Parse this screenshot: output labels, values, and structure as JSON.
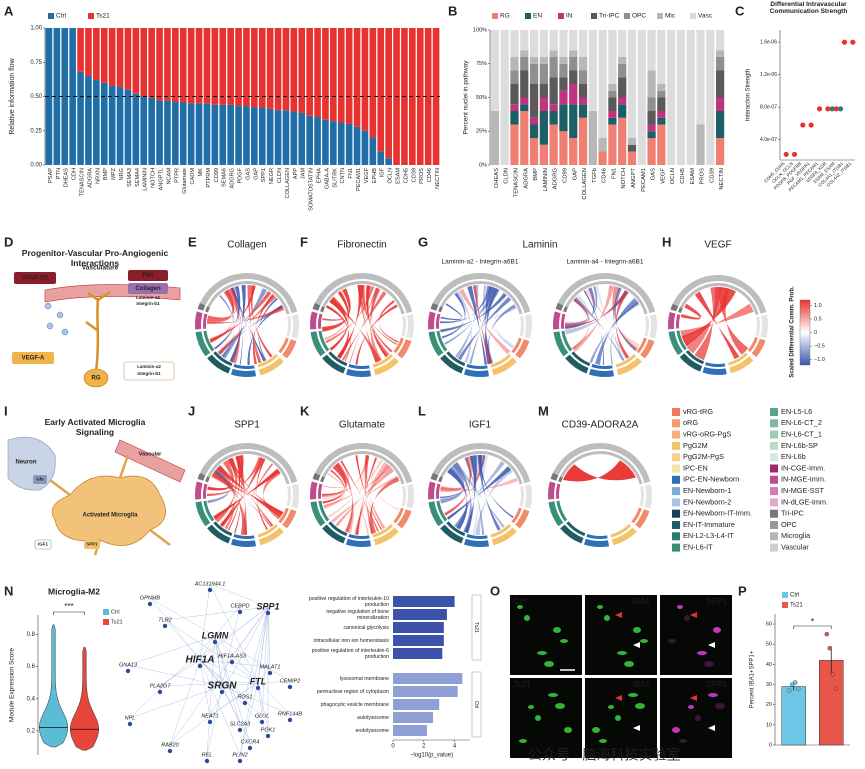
{
  "panels": [
    "A",
    "B",
    "C",
    "D",
    "E",
    "F",
    "G",
    "H",
    "I",
    "J",
    "K",
    "L",
    "M",
    "N",
    "O",
    "P"
  ],
  "chart_data": [
    {
      "type": "bar",
      "stacked": true,
      "y_label": "Relative information flow",
      "categories": [
        "PSAP",
        "PTN",
        "DHEAS",
        "CDH",
        "TENASCIN",
        "ADGRA",
        "NRXN",
        "BMP",
        "MPZ",
        "NRG",
        "SEMA3",
        "SEMA4",
        "LAMININ",
        "NOTCH",
        "ANGPTL",
        "NCAM",
        "PTPR",
        "Glutamate",
        "CADM",
        "MK",
        "PTPRM",
        "CD99",
        "SEMA6",
        "ADGRG",
        "PDGF",
        "GAS",
        "GAP",
        "SPP1",
        "NEGR",
        "CLDN",
        "COLLAGEN",
        "APP",
        "JAM",
        "SOMATOSTATIN",
        "EPHA",
        "GABA-A",
        "SLITRK",
        "CNTN",
        "FN1",
        "PECAM1",
        "VEGF",
        "EPHB",
        "IGF",
        "OCLN",
        "ESAM",
        "CDH5",
        "CD39",
        "PROS",
        "CD46",
        "NECTIN"
      ],
      "category_colors": [
        "#2a8fb5",
        "#2a8fb5",
        "#2a8fb5",
        "#2a8fb5",
        "#222222",
        "#2a8fb5",
        "#2a8fb5",
        "#2a8fb5",
        "#222222",
        "#222222",
        "#222222",
        "#222222",
        "#222222",
        "#222222",
        "#e8322f",
        "#e8322f",
        "#e8322f",
        "#e8322f",
        "#e8322f",
        "#e8322f",
        "#222222",
        "#222222",
        "#e8322f",
        "#222222",
        "#222222",
        "#e8322f",
        "#222222",
        "#e8322f",
        "#e8322f",
        "#e8322f",
        "#e8322f",
        "#e8322f",
        "#e8322f",
        "#222222",
        "#222222",
        "#e8322f",
        "#e8322f",
        "#e8322f",
        "#e8322f",
        "#e8322f",
        "#222222",
        "#e8322f",
        "#e8322f",
        "#e8322f",
        "#e8322f",
        "#e8322f",
        "#e8322f",
        "#e8322f",
        "#e8322f",
        "#e8322f"
      ],
      "series": [
        {
          "name": "Ctrl",
          "color": "#1f6ea8",
          "values": [
            1,
            1,
            1,
            1,
            0.68,
            0.65,
            0.62,
            0.6,
            0.58,
            0.57,
            0.55,
            0.52,
            0.5,
            0.49,
            0.47,
            0.47,
            0.46,
            0.46,
            0.45,
            0.45,
            0.45,
            0.44,
            0.44,
            0.44,
            0.43,
            0.43,
            0.42,
            0.42,
            0.41,
            0.4,
            0.4,
            0.39,
            0.38,
            0.36,
            0.35,
            0.33,
            0.32,
            0.31,
            0.3,
            0.28,
            0.25,
            0.2,
            0.1,
            0.05,
            0,
            0,
            0,
            0,
            0,
            0
          ]
        },
        {
          "name": "Ts21",
          "color": "#e8322f",
          "values": [
            0,
            0,
            0,
            0,
            0.32,
            0.35,
            0.38,
            0.4,
            0.42,
            0.43,
            0.45,
            0.48,
            0.5,
            0.51,
            0.53,
            0.53,
            0.54,
            0.54,
            0.55,
            0.55,
            0.55,
            0.56,
            0.56,
            0.56,
            0.57,
            0.57,
            0.58,
            0.58,
            0.59,
            0.6,
            0.6,
            0.61,
            0.62,
            0.64,
            0.65,
            0.67,
            0.68,
            0.69,
            0.7,
            0.72,
            0.75,
            0.8,
            0.9,
            0.95,
            1,
            1,
            1,
            1,
            1,
            1
          ]
        }
      ],
      "ylim": [
        0,
        1
      ],
      "yticks": [
        {
          "value": 0,
          "label": "0.00"
        },
        {
          "value": 0.25,
          "label": "0.25"
        },
        {
          "value": 0.5,
          "label": "0.50"
        },
        {
          "value": 0.75,
          "label": "0.75"
        },
        {
          "value": 1,
          "label": "1.00"
        }
      ],
      "hline": 0.5
    },
    {
      "type": "bar",
      "stacked": true,
      "y_label": "Percent nuclei in pathway",
      "categories": [
        "DHEAS",
        "CLDN",
        "TENASCIN",
        "ADGRA",
        "BMP",
        "LAMININ",
        "ADGRG",
        "CD99",
        "GAP",
        "COLLAGEN",
        "TGFb",
        "CD46",
        "FN1",
        "NOTCH",
        "ANGPT",
        "PECAM1",
        "GAS",
        "VEGF",
        "OCLN",
        "CDH5",
        "ESAM",
        "PROS",
        "CD39",
        "NECTIN"
      ],
      "category_colors": [
        "#2a8fb5",
        "#2a8fb5",
        "#222222",
        "#2a8fb5",
        "#222222",
        "#222222",
        "#222222",
        "#222222",
        "#222222",
        "#e8322f",
        "#222222",
        "#e8322f",
        "#e8322f",
        "#e8322f",
        "#e8322f",
        "#e8322f",
        "#e8322f",
        "#222222",
        "#e8322f",
        "#e8322f",
        "#e8322f",
        "#e8322f",
        "#e8322f",
        "#e8322f"
      ],
      "series": [
        {
          "name": "RG",
          "color": "#ee7f72",
          "values": [
            0,
            0,
            30,
            40,
            20,
            15,
            30,
            25,
            20,
            35,
            0,
            10,
            30,
            35,
            10,
            0,
            20,
            30,
            0,
            0,
            0,
            0,
            0,
            20
          ]
        },
        {
          "name": "EN",
          "color": "#1d5f66",
          "values": [
            0,
            0,
            10,
            5,
            10,
            25,
            10,
            20,
            25,
            10,
            0,
            0,
            5,
            10,
            0,
            0,
            5,
            5,
            0,
            0,
            0,
            0,
            0,
            20
          ]
        },
        {
          "name": "IN",
          "color": "#c2337f",
          "values": [
            0,
            0,
            5,
            5,
            5,
            10,
            5,
            10,
            15,
            5,
            0,
            0,
            5,
            5,
            0,
            0,
            5,
            5,
            0,
            0,
            0,
            0,
            0,
            10
          ]
        },
        {
          "name": "Tri-IPC",
          "color": "#5a5a5a",
          "values": [
            0,
            0,
            15,
            20,
            25,
            10,
            20,
            10,
            10,
            10,
            0,
            0,
            10,
            15,
            5,
            0,
            10,
            10,
            0,
            0,
            0,
            0,
            0,
            20
          ]
        },
        {
          "name": "OPC",
          "color": "#8f8f8f",
          "values": [
            0,
            0,
            10,
            10,
            15,
            15,
            15,
            10,
            10,
            10,
            0,
            0,
            5,
            10,
            0,
            0,
            10,
            5,
            0,
            0,
            0,
            0,
            0,
            10
          ]
        },
        {
          "name": "Mic",
          "color": "#b7b7b7",
          "values": [
            40,
            0,
            10,
            5,
            5,
            5,
            5,
            5,
            5,
            10,
            40,
            10,
            5,
            5,
            5,
            0,
            20,
            5,
            0,
            0,
            0,
            30,
            0,
            5
          ]
        },
        {
          "name": "Vasc",
          "color": "#dcdcdc",
          "values": [
            60,
            100,
            20,
            15,
            20,
            20,
            15,
            20,
            15,
            20,
            60,
            80,
            40,
            20,
            80,
            100,
            30,
            40,
            100,
            100,
            100,
            70,
            100,
            15
          ]
        }
      ],
      "ylim": [
        0,
        100
      ],
      "yticks": [
        {
          "value": 0,
          "label": "0%"
        },
        {
          "value": 25,
          "label": "25%"
        },
        {
          "value": 50,
          "label": "50%"
        },
        {
          "value": 75,
          "label": "75%"
        },
        {
          "value": 100,
          "label": "100%"
        }
      ]
    },
    {
      "type": "scatter",
      "title": "Differential Intravascular Communication Strength",
      "y_label": "Interaction Strength",
      "categories": [
        "CDH5_CDH5",
        "OCLN_OCLN",
        "PDGFB_PDGFRB",
        "PGF_VEGFR1",
        "PECAM1_PECAM1",
        "VEGFA_KDR",
        "ESAM_ESAM",
        "COL4A1_ITGB1",
        "COL4A2_ITGB1"
      ],
      "series": [
        {
          "name": "Ctrl",
          "color": "#1a7f86",
          "values": [
            null,
            null,
            null,
            null,
            null,
            null,
            7.8e-07,
            7.8e-07,
            null
          ]
        },
        {
          "name": "Ts21",
          "color": "#e8322f",
          "values": [
            2.2e-07,
            2.2e-07,
            5.8e-07,
            5.8e-07,
            7.8e-07,
            7.8e-07,
            7.8e-07,
            1.6e-06,
            1.6e-06
          ]
        }
      ],
      "ylim": [
        1.5e-07,
        1.75e-06
      ],
      "yticks": [
        {
          "value": 4e-07,
          "label": "4.0e-07"
        },
        {
          "value": 8e-07,
          "label": "8.0e-07"
        },
        {
          "value": 1.2e-06,
          "label": "1.2e-06"
        },
        {
          "value": 1.6e-06,
          "label": "1.6e-06"
        }
      ]
    },
    {
      "type": "violin",
      "title": "Microglia-M2",
      "y_label": "Module Expression Score",
      "annotation": "***",
      "series": [
        {
          "name": "Ctrl",
          "color": "#5bbcd6",
          "min": 0.1,
          "median": 0.22,
          "max": 0.86
        },
        {
          "name": "Ts21",
          "color": "#e8453c",
          "min": 0.08,
          "median": 0.21,
          "max": 0.72
        }
      ],
      "ylim": [
        0.05,
        0.92
      ],
      "yticks": [
        0.2,
        0.4,
        0.6,
        0.8
      ]
    },
    {
      "type": "hbar",
      "x_label": "−log10(p_value)",
      "categories": [
        "positive regulation of interleukin-10 production",
        "negative regulation of bone mineralization",
        "canonical glycolysis",
        "intracellular iron ion homeostasis",
        "positive regulation of interleukin-6 production",
        "lysosomal membrane",
        "perinuclear region of cytoplasm",
        "phagocytic vesicle membrane",
        "autolysosome",
        "endolysosome"
      ],
      "series": [
        {
          "name": "Ts21",
          "color": "#3b52a8",
          "values": [
            4.0,
            3.5,
            3.3,
            3.3,
            3.2,
            null,
            null,
            null,
            null,
            null
          ]
        },
        {
          "name": "Ctrl",
          "color": "#8e9fd6",
          "values": [
            null,
            null,
            null,
            null,
            null,
            4.5,
            4.2,
            3.0,
            2.6,
            2.2
          ]
        }
      ],
      "xlim": [
        0,
        5
      ],
      "xticks": [
        0,
        2,
        4
      ]
    },
    {
      "type": "bar",
      "y_label": "Percent IBA1+SPP1+",
      "annotation": "*",
      "series": [
        {
          "name": "Ctrl",
          "color": "#6ec6e6",
          "values": [
            29
          ],
          "errors": [
            2
          ],
          "points": [
            27,
            30,
            31,
            28
          ]
        },
        {
          "name": "Ts21",
          "color": "#e8564a",
          "values": [
            42
          ],
          "errors": [
            7
          ],
          "points": [
            55,
            48,
            35,
            28
          ]
        }
      ],
      "ylim": [
        0,
        65
      ],
      "yticks": [
        0,
        10,
        20,
        30,
        40,
        50,
        60
      ]
    }
  ],
  "colorbar": {
    "title": "Scaled Differential Comm. Prob.",
    "lim": [
      -1.2,
      1.2
    ],
    "ticks": [
      {
        "value": 1,
        "label": "1.0"
      },
      {
        "value": 0.5,
        "label": "0.5"
      },
      0,
      {
        "value": -0.5,
        "label": "−0.5"
      },
      {
        "value": -1,
        "label": "−1.0"
      }
    ]
  },
  "diagram_D": {
    "title": "Progenitor-Vascular Pro-Angiogenic Interactions",
    "labels": [
      "Vasculature",
      "VEGF-R2",
      "FN1",
      "Collagen",
      "Laminin-a2",
      "Integrin-b1",
      "VEGF-A",
      "RG",
      "Laminin-a2",
      "Integrin-b1"
    ]
  },
  "chords": [
    {
      "title": "Collagen"
    },
    {
      "title": "Fibronectin"
    },
    {
      "title": "Laminin",
      "subtitles": [
        "Laminin-a2 - Integrin-a6B1",
        "Laminin-a4 - Integrin-a6B1"
      ]
    },
    {
      "title": "VEGF"
    },
    {
      "title": "SPP1"
    },
    {
      "title": "Glutamate"
    },
    {
      "title": "IGF1"
    },
    {
      "title": "CD39-ADORA2A"
    }
  ],
  "diagram_I": {
    "title": "Early Activated Microglia Signaling",
    "labels": [
      "Neuron",
      "Vascular",
      "Glu",
      "Activated Microglia",
      "IGF1",
      "SPP1"
    ]
  },
  "cell_types": [
    {
      "name": "vRG-tRG",
      "color": "#f07c5c"
    },
    {
      "name": "oRG",
      "color": "#f29a6e"
    },
    {
      "name": "vRG-oRG-PgS",
      "color": "#f5b07e"
    },
    {
      "name": "PgG2M",
      "color": "#f2c36a"
    },
    {
      "name": "PgG2M-PgS",
      "color": "#f5d28a"
    },
    {
      "name": "IPC-EN",
      "color": "#f6e3a8"
    },
    {
      "name": "IPC-EN-Newborn",
      "color": "#2f6fb8"
    },
    {
      "name": "EN-Newborn-1",
      "color": "#7fa9d9"
    },
    {
      "name": "EN-Newborn-2",
      "color": "#aac4e6"
    },
    {
      "name": "EN-Newborn-IT-Imm.",
      "color": "#173f5a"
    },
    {
      "name": "EN-IT-Immature",
      "color": "#1f5c63"
    },
    {
      "name": "EN-L2-L3-L4-IT",
      "color": "#2a7a6d"
    },
    {
      "name": "EN-L6-IT",
      "color": "#3a8f78"
    },
    {
      "name": "EN-L5-L6",
      "color": "#5aa58a"
    },
    {
      "name": "EN-L6-CT_2",
      "color": "#7db9a0"
    },
    {
      "name": "EN-L6-CT_1",
      "color": "#9ccab2"
    },
    {
      "name": "EN-L6b-SP",
      "color": "#bcdcc8"
    },
    {
      "name": "EN-L6b",
      "color": "#d5eadc"
    },
    {
      "name": "IN-CGE-Imm.",
      "color": "#9c2b6e"
    },
    {
      "name": "IN-MGE-Imm.",
      "color": "#c04c8d"
    },
    {
      "name": "IN-MGE-SST",
      "color": "#d77aae"
    },
    {
      "name": "IN-dLGE-Imm.",
      "color": "#e8a8cc"
    },
    {
      "name": "Tri-IPC",
      "color": "#777777"
    },
    {
      "name": "OPC",
      "color": "#999999"
    },
    {
      "name": "Microglia",
      "color": "#b5b5b5"
    },
    {
      "name": "Vascular",
      "color": "#d0d0d0"
    }
  ],
  "network": {
    "genes": [
      "AC131944.1",
      "GPNMB",
      "TLR2",
      "CEBPD",
      "SPP1",
      "LGMN",
      "HIF1A-AS3",
      "HIF1A",
      "MALAT1",
      "CEMIP2",
      "FTL",
      "SRGN",
      "RGS1",
      "GNA13",
      "PLA2G7",
      "NPL",
      "NEAT1",
      "SLC2A3",
      "GLUL",
      "RNF144B",
      "PGK1",
      "CXCR4",
      "RAB20",
      "REL",
      "PLIN2"
    ]
  },
  "micrographs": {
    "labels": [
      "Ctrl",
      "IBA1",
      "SPP1",
      "Ts21",
      "IBA1",
      "SPP1"
    ]
  },
  "watermark": "公众号 · 脑海科技实验室"
}
